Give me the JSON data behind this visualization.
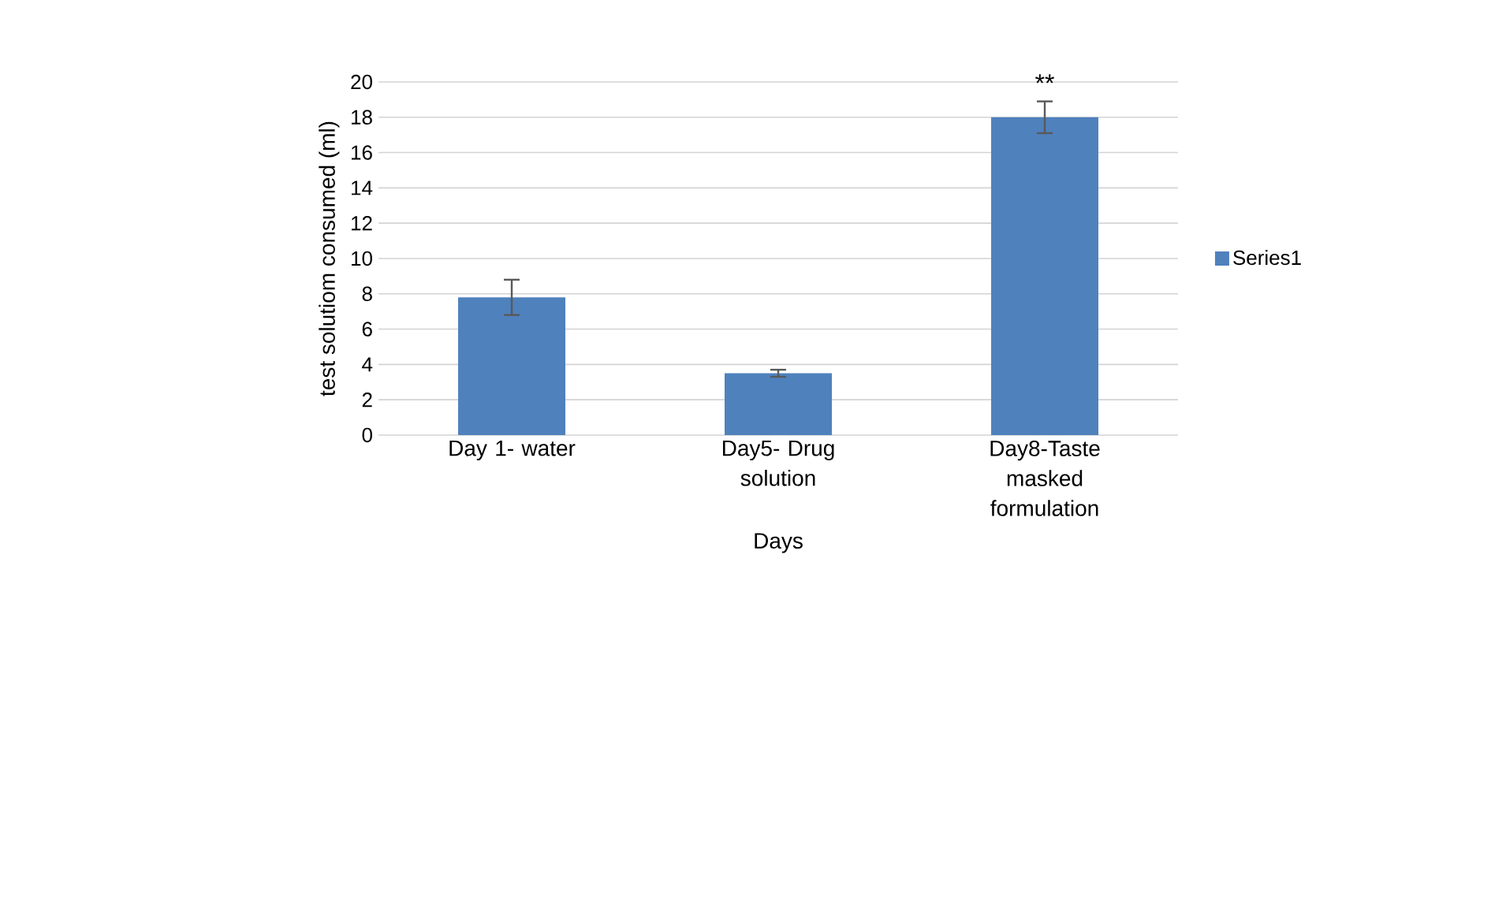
{
  "chart_data": {
    "type": "bar",
    "categories": [
      "Day 1- water",
      "Day5- Drug solution",
      "Day8-Taste masked formulation"
    ],
    "series": [
      {
        "name": "Series1",
        "color": "#4f81bd",
        "values": [
          7.8,
          3.5,
          18.0
        ],
        "errors": [
          1.0,
          0.2,
          0.9
        ]
      }
    ],
    "xlabel": "Days",
    "ylabel": "test solutiom  consumed (ml)",
    "ylim": [
      0,
      20
    ],
    "yticks": [
      0,
      2,
      4,
      6,
      8,
      10,
      12,
      14,
      16,
      18,
      20
    ],
    "grid": "y",
    "legend": "right",
    "annotations": [
      {
        "text": "**",
        "x": "Day8-Taste masked formulation",
        "y": 18.0
      }
    ]
  }
}
